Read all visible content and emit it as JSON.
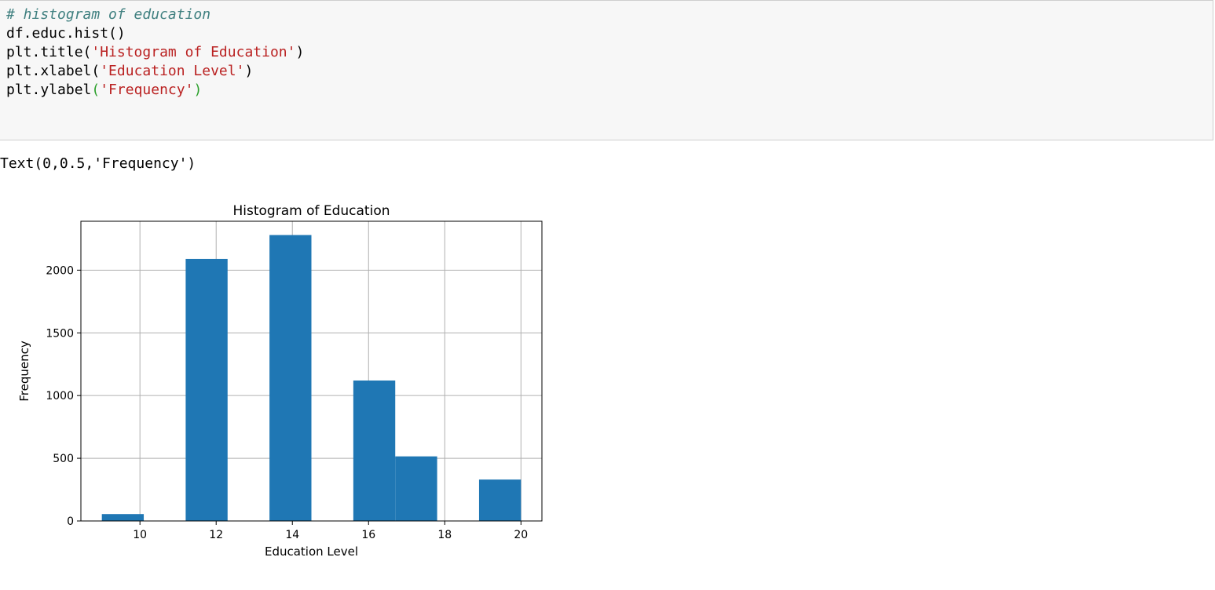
{
  "code_cell": {
    "lines": [
      {
        "comment": "# histogram of education"
      },
      {
        "plain": "df.educ.hist()"
      },
      {
        "pre": "plt.title(",
        "str": "'Histogram of Education'",
        "post": ")"
      },
      {
        "pre": "plt.xlabel(",
        "str": "'Education Level'",
        "post": ")"
      },
      {
        "pre": "plt.ylabel",
        "open": "(",
        "str": "'Frequency'",
        "close": ")"
      }
    ]
  },
  "output": {
    "text": "Text(0,0.5,'Frequency')"
  },
  "colors": {
    "bar": "#1f77b4",
    "grid": "#b0b0b0",
    "cell_bg": "#f7f7f7",
    "comment": "#408080",
    "string": "#ba2121",
    "paren_highlight": "#2ca02c"
  },
  "chart_data": {
    "type": "bar",
    "title": "Histogram of Education",
    "xlabel": "Education Level",
    "ylabel": "Frequency",
    "xlim": [
      8.45,
      20.55
    ],
    "ylim": [
      0,
      2390
    ],
    "grid": true,
    "xticks": [
      10,
      12,
      14,
      16,
      18,
      20
    ],
    "yticks": [
      0,
      500,
      1000,
      1500,
      2000
    ],
    "bins": [
      {
        "x0": 9.0,
        "x1": 10.1,
        "value": 55
      },
      {
        "x0": 10.1,
        "x1": 11.2,
        "value": 0
      },
      {
        "x0": 11.2,
        "x1": 12.3,
        "value": 2090
      },
      {
        "x0": 12.3,
        "x1": 13.4,
        "value": 0
      },
      {
        "x0": 13.4,
        "x1": 14.5,
        "value": 2280
      },
      {
        "x0": 14.5,
        "x1": 15.6,
        "value": 0
      },
      {
        "x0": 15.6,
        "x1": 16.7,
        "value": 1120
      },
      {
        "x0": 16.7,
        "x1": 17.8,
        "value": 515
      },
      {
        "x0": 17.8,
        "x1": 18.9,
        "value": 0
      },
      {
        "x0": 18.9,
        "x1": 20.0,
        "value": 330
      }
    ]
  }
}
